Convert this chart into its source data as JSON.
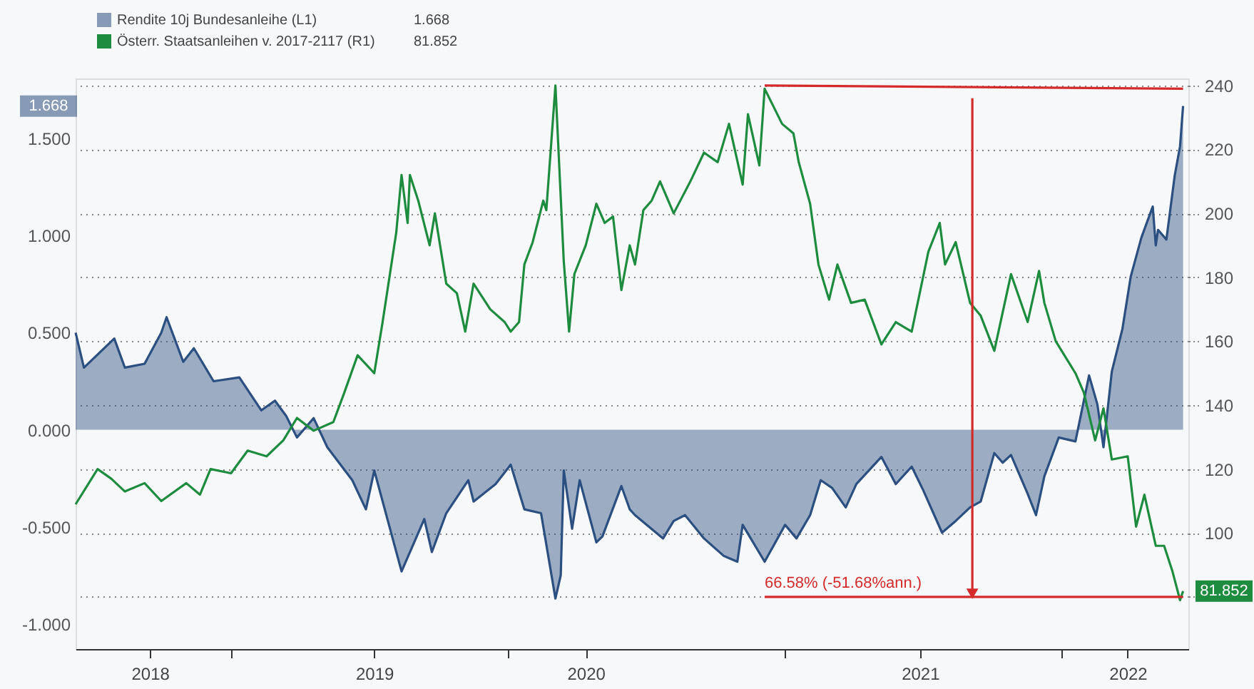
{
  "chart_data": {
    "type": "line",
    "legend": "top left",
    "grid": "y",
    "xlim": [
      "2018-06-10",
      "2022-06-17"
    ],
    "xticks": [
      {
        "value": "2018-09-16",
        "label": "2018"
      },
      {
        "value": "2019-01-01",
        "label": null
      },
      {
        "value": "2019-07-09",
        "label": "2019"
      },
      {
        "value": "2020-01-01",
        "label": null
      },
      {
        "value": "2020-04-13",
        "label": "2020"
      },
      {
        "value": "2021-01-01",
        "label": null
      },
      {
        "value": "2021-06-28",
        "label": "2021"
      },
      {
        "value": "2022-01-01",
        "label": null
      },
      {
        "value": "2022-03-29",
        "label": "2022"
      }
    ],
    "ylim": [
      -1.13,
      1.81
    ],
    "yticks": [
      {
        "value": 1.5,
        "label": "1.500"
      },
      {
        "value": 1,
        "label": "1.000"
      },
      {
        "value": 0.5,
        "label": "0.500"
      },
      {
        "value": 0,
        "label": "0.000"
      },
      {
        "value": -0.5,
        "label": "-0.500"
      },
      {
        "value": -1,
        "label": "-1.000"
      }
    ],
    "y2lim": [
      63.7,
      242.2
    ],
    "y2ticks": [
      {
        "value": 80,
        "label": null
      },
      100,
      120,
      140,
      160,
      180,
      200,
      220,
      240
    ],
    "annotations": [
      "1.668",
      "81.852",
      "1.668",
      "81.852",
      {
        "text": "66.58% (-51.68%ann.)",
        "x": "2020-12-05",
        "y": -0.83
      }
    ],
    "series": [
      {
        "name": "Rendite 10j Bundesanleihe (L1)",
        "type": "area",
        "color": "#2b4f80",
        "x": [
          "2018-06-10",
          "2018-06-21",
          "2018-07-31",
          "2018-08-14",
          "2018-09-09",
          "2018-10-01",
          "2018-10-08",
          "2018-10-30",
          "2018-11-13",
          "2018-12-09",
          "2019-01-12",
          "2019-02-10",
          "2019-02-28",
          "2019-03-15",
          "2019-03-29",
          "2019-04-20",
          "2019-05-08",
          "2019-06-10",
          "2019-06-28",
          "2019-07-09",
          "2019-08-14",
          "2019-09-13",
          "2019-09-23",
          "2019-10-12",
          "2019-11-10",
          "2019-11-17",
          "2019-12-16",
          "2020-01-05",
          "2020-01-23",
          "2020-02-14",
          "2020-03-04",
          "2020-03-11",
          "2020-03-15",
          "2020-03-26",
          "2020-04-05",
          "2020-04-27",
          "2020-05-05",
          "2020-05-30",
          "2020-06-10",
          "2020-06-17",
          "2020-07-24",
          "2020-08-07",
          "2020-08-22",
          "2020-09-16",
          "2020-10-12",
          "2020-10-30",
          "2020-11-06",
          "2020-12-05",
          "2021-01-01",
          "2021-01-16",
          "2021-02-03",
          "2021-02-17",
          "2021-03-04",
          "2021-03-22",
          "2021-04-05",
          "2021-05-08",
          "2021-05-27",
          "2021-06-17",
          "2021-07-02",
          "2021-07-27",
          "2021-08-14",
          "2021-09-02",
          "2021-09-16",
          "2021-10-04",
          "2021-10-15",
          "2021-10-26",
          "2021-11-17",
          "2021-11-28",
          "2021-12-09",
          "2021-12-28",
          "2022-01-19",
          "2022-02-06",
          "2022-02-17",
          "2022-02-25",
          "2022-03-08",
          "2022-03-22",
          "2022-04-02",
          "2022-04-16",
          "2022-05-01",
          "2022-05-05",
          "2022-05-08",
          "2022-05-19",
          "2022-05-30",
          "2022-06-06",
          "2022-06-10"
        ],
        "values": [
          0.5,
          0.32,
          0.47,
          0.32,
          0.34,
          0.5,
          0.58,
          0.35,
          0.42,
          0.25,
          0.27,
          0.1,
          0.15,
          0.07,
          -0.04,
          0.06,
          -0.09,
          -0.26,
          -0.41,
          -0.21,
          -0.73,
          -0.46,
          -0.63,
          -0.43,
          -0.26,
          -0.37,
          -0.28,
          -0.18,
          -0.41,
          -0.43,
          -0.87,
          -0.75,
          -0.21,
          -0.51,
          -0.26,
          -0.58,
          -0.55,
          -0.29,
          -0.41,
          -0.44,
          -0.56,
          -0.47,
          -0.44,
          -0.56,
          -0.65,
          -0.68,
          -0.49,
          -0.68,
          -0.49,
          -0.56,
          -0.44,
          -0.26,
          -0.3,
          -0.4,
          -0.28,
          -0.14,
          -0.28,
          -0.19,
          -0.31,
          -0.53,
          -0.47,
          -0.4,
          -0.37,
          -0.12,
          -0.17,
          -0.13,
          -0.33,
          -0.44,
          -0.24,
          -0.04,
          -0.06,
          0.28,
          0.13,
          -0.09,
          0.3,
          0.52,
          0.79,
          0.99,
          1.15,
          0.95,
          1.03,
          0.98,
          1.31,
          1.46,
          1.668
        ]
      },
      {
        "name": "Österr. Staatsanleihen v. 2017-2117 (R1)",
        "axis": "y2",
        "color": "#1e8c3e",
        "x": [
          "2018-06-10",
          "2018-07-09",
          "2018-07-27",
          "2018-08-14",
          "2018-09-09",
          "2018-10-01",
          "2018-11-03",
          "2018-11-21",
          "2018-12-05",
          "2019-01-01",
          "2019-01-23",
          "2019-02-17",
          "2019-03-11",
          "2019-03-29",
          "2019-04-20",
          "2019-05-16",
          "2019-05-30",
          "2019-06-17",
          "2019-07-09",
          "2019-07-20",
          "2019-08-07",
          "2019-08-14",
          "2019-08-22",
          "2019-08-25",
          "2019-09-05",
          "2019-09-20",
          "2019-09-27",
          "2019-10-12",
          "2019-10-26",
          "2019-11-06",
          "2019-11-17",
          "2019-12-09",
          "2019-12-28",
          "2020-01-05",
          "2020-01-16",
          "2020-01-23",
          "2020-02-03",
          "2020-02-17",
          "2020-02-21",
          "2020-03-04",
          "2020-03-15",
          "2020-03-22",
          "2020-03-29",
          "2020-04-13",
          "2020-04-27",
          "2020-05-08",
          "2020-05-19",
          "2020-05-30",
          "2020-06-10",
          "2020-06-17",
          "2020-06-28",
          "2020-07-09",
          "2020-07-20",
          "2020-08-07",
          "2020-08-29",
          "2020-09-16",
          "2020-10-04",
          "2020-10-19",
          "2020-11-06",
          "2020-11-13",
          "2020-11-28",
          "2020-12-05",
          "2020-12-28",
          "2021-01-12",
          "2021-01-19",
          "2021-02-03",
          "2021-02-14",
          "2021-02-28",
          "2021-03-11",
          "2021-03-29",
          "2021-04-16",
          "2021-05-08",
          "2021-05-27",
          "2021-06-17",
          "2021-07-09",
          "2021-07-24",
          "2021-07-31",
          "2021-08-14",
          "2021-09-02",
          "2021-09-16",
          "2021-10-04",
          "2021-10-26",
          "2021-11-17",
          "2021-12-02",
          "2021-12-09",
          "2021-12-24",
          "2022-01-19",
          "2022-01-30",
          "2022-02-14",
          "2022-02-25",
          "2022-03-08",
          "2022-03-29",
          "2022-04-09",
          "2022-04-20",
          "2022-05-05",
          "2022-05-16",
          "2022-05-27",
          "2022-06-06",
          "2022-06-10"
        ],
        "values": [
          109,
          120,
          117,
          113,
          115.6,
          110,
          115.6,
          112,
          120,
          118.7,
          125.8,
          124,
          129,
          136,
          132,
          134.7,
          143.6,
          155.6,
          150,
          166,
          194,
          212,
          197,
          212,
          204,
          190,
          200,
          178,
          175,
          163,
          178,
          170,
          166,
          163,
          166,
          184,
          191,
          204,
          201,
          240,
          185,
          163,
          181,
          190,
          203,
          197,
          199,
          176,
          190,
          184,
          201,
          204,
          210,
          200,
          210,
          219,
          216,
          228,
          209,
          231,
          215,
          239,
          228,
          225,
          216,
          203,
          184,
          173,
          184,
          172,
          173,
          159,
          166,
          163,
          188,
          197,
          184,
          191,
          172,
          168,
          157,
          181,
          166,
          182,
          172,
          160,
          150,
          144,
          129,
          139,
          123,
          124,
          102,
          112,
          96,
          96,
          88,
          79,
          81.852
        ]
      },
      {
        "axis": "y2",
        "color": "#d42a2a",
        "x": [
          "2020-12-05",
          "2022-06-10"
        ],
        "values": [
          240,
          239
        ]
      },
      {
        "axis": "y2",
        "color": "#d42a2a",
        "marker": "triangle",
        "x": [
          "2021-09-05",
          "2021-09-05"
        ],
        "values": [
          236,
          81
        ]
      },
      {
        "axis": "y2",
        "color": "#d42a2a",
        "x": [
          "2020-12-05",
          "2022-06-10"
        ],
        "values": [
          80,
          80
        ]
      }
    ]
  }
}
